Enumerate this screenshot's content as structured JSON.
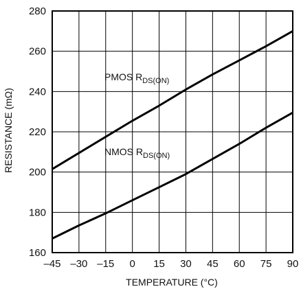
{
  "chart_data": {
    "type": "line",
    "xlabel": "TEMPERATURE (°C)",
    "ylabel": "RESISTANCE (mΩ)",
    "xlim": [
      -45,
      90
    ],
    "ylim": [
      160,
      280
    ],
    "x_ticks": [
      -45,
      -30,
      -15,
      0,
      15,
      30,
      45,
      60,
      75,
      90
    ],
    "x_tick_labels": [
      "–45",
      "–30",
      "–15",
      "0",
      "15",
      "30",
      "45",
      "60",
      "75",
      "90"
    ],
    "y_ticks": [
      160,
      180,
      200,
      220,
      240,
      260,
      280
    ],
    "y_tick_labels": [
      "160",
      "180",
      "200",
      "220",
      "240",
      "260",
      "280"
    ],
    "grid": true,
    "series": [
      {
        "name": "PMOS RDS(ON)",
        "label_main": "PMOS R",
        "label_sub": "DS(ON)",
        "x": [
          -45,
          -30,
          -15,
          0,
          15,
          30,
          45,
          60,
          75,
          90
        ],
        "values": [
          201.5,
          209.5,
          217.5,
          225.5,
          233,
          241,
          248.5,
          255.5,
          262.5,
          270
        ]
      },
      {
        "name": "NMOS RDS(ON)",
        "label_main": "NMOS R",
        "label_sub": "DS(ON)",
        "x": [
          -45,
          -30,
          -15,
          0,
          15,
          30,
          45,
          60,
          75,
          90
        ],
        "values": [
          167,
          173.5,
          179.5,
          186,
          192.5,
          199,
          206.5,
          214,
          222,
          229.5
        ]
      }
    ]
  }
}
